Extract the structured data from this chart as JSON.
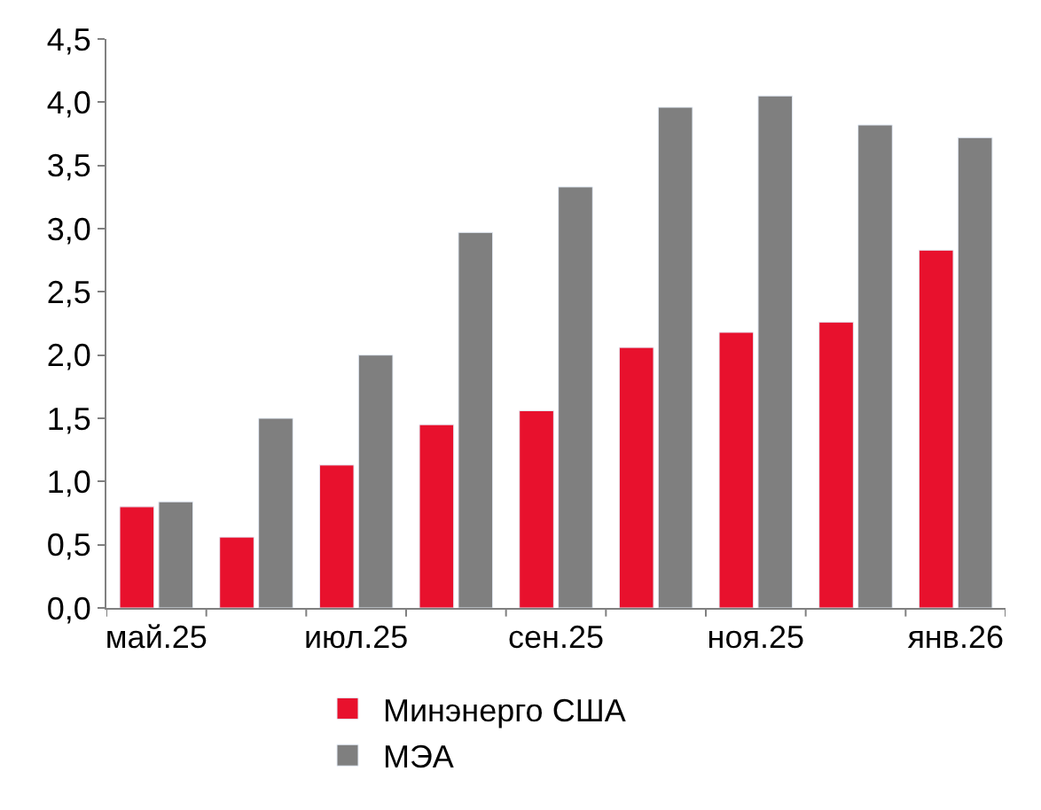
{
  "chart_data": {
    "type": "bar",
    "categories": [
      "май.25",
      null,
      "июл.25",
      null,
      "сен.25",
      null,
      "ноя.25",
      null,
      "янв.26"
    ],
    "series": [
      {
        "name": "Минэнерго США",
        "color": "#e8112d",
        "values": [
          0.8,
          0.56,
          1.13,
          1.45,
          1.56,
          2.06,
          2.18,
          2.26,
          2.83
        ]
      },
      {
        "name": "МЭА",
        "color": "#7f7f7f",
        "values": [
          0.84,
          1.5,
          2.0,
          2.97,
          3.33,
          3.96,
          4.05,
          3.82,
          3.72
        ]
      }
    ],
    "ylim": [
      0,
      4.5
    ],
    "yticks": [
      {
        "value": 0,
        "label": "0,0"
      },
      {
        "value": 0.5,
        "label": "0,5"
      },
      {
        "value": 1,
        "label": "1,0"
      },
      {
        "value": 1.5,
        "label": "1,5"
      },
      {
        "value": 2,
        "label": "2,0"
      },
      {
        "value": 2.5,
        "label": "2,5"
      },
      {
        "value": 3,
        "label": "3,0"
      },
      {
        "value": 3.5,
        "label": "3,5"
      },
      {
        "value": 4,
        "label": "4,0"
      },
      {
        "value": 4.5,
        "label": "4,5"
      }
    ],
    "legend": "bottom"
  }
}
